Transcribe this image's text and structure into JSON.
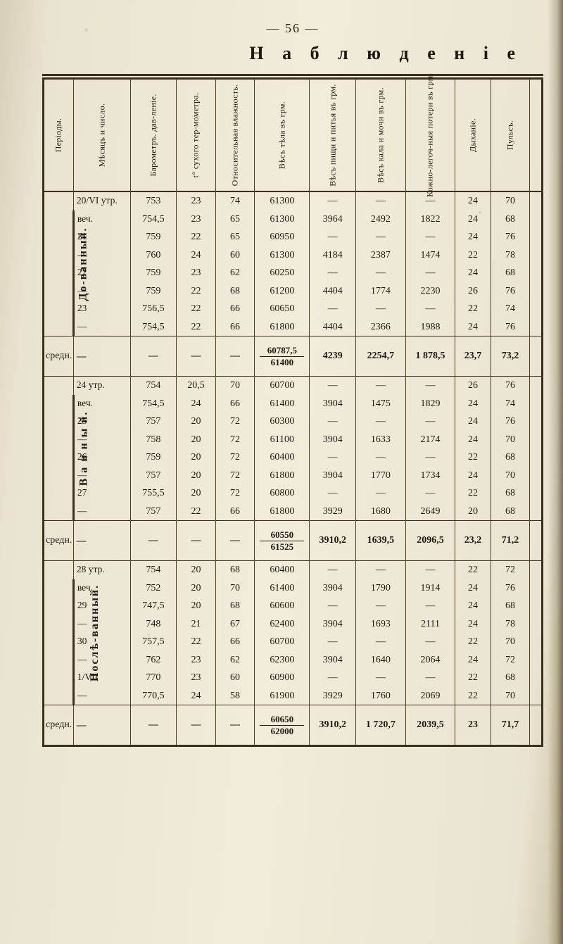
{
  "page_number": "— 56 —",
  "title": "Н а б л ю д е н і е",
  "columns": [
    {
      "key": "period",
      "label": "Періоды."
    },
    {
      "key": "date",
      "label": "Мѣсяцъ и число."
    },
    {
      "key": "baro",
      "label": "Барометръ. дав-леніе."
    },
    {
      "key": "temp",
      "label": "t° сухого тер-мометра."
    },
    {
      "key": "humid",
      "label": "Относительная влажность."
    },
    {
      "key": "bodywt",
      "label": "Вѣсъ тѣла въ грм."
    },
    {
      "key": "foodwt",
      "label": "Вѣсъ пищи и питья въ грм."
    },
    {
      "key": "fecwt",
      "label": "Вѣсъ кала и мочи въ грм."
    },
    {
      "key": "urinewt",
      "label": "Кожно-легоч-ныя потери въ грм."
    },
    {
      "key": "breath",
      "label": "Дыханіе."
    },
    {
      "key": "pulse",
      "label": "Пульсъ."
    },
    {
      "key": "edge",
      "label": ""
    }
  ],
  "blocks": [
    {
      "period_label": "До-ванный.",
      "rows": [
        {
          "date": "20/VI утр.",
          "baro": "753",
          "temp": "23",
          "humid": "74",
          "bodywt": "61300",
          "foodwt": "—",
          "fecwt": "—",
          "urinewt": "—",
          "breath": "24",
          "pulse": "70",
          "edge": ""
        },
        {
          "date": "        веч.",
          "baro": "754,5",
          "temp": "23",
          "humid": "65",
          "bodywt": "61300",
          "foodwt": "3964",
          "fecwt": "2492",
          "urinewt": "1822",
          "breath": "24",
          "pulse": "68",
          "edge": ""
        },
        {
          "date": "21",
          "baro": "759",
          "temp": "22",
          "humid": "65",
          "bodywt": "60950",
          "foodwt": "—",
          "fecwt": "—",
          "urinewt": "—",
          "breath": "24",
          "pulse": "76",
          "edge": ""
        },
        {
          "date": "   —",
          "baro": "760",
          "temp": "24",
          "humid": "60",
          "bodywt": "61300",
          "foodwt": "4184",
          "fecwt": "2387",
          "urinewt": "1474",
          "breath": "22",
          "pulse": "78",
          "edge": ""
        },
        {
          "date": "22",
          "baro": "759",
          "temp": "23",
          "humid": "62",
          "bodywt": "60250",
          "foodwt": "—",
          "fecwt": "—",
          "urinewt": "—",
          "breath": "24",
          "pulse": "68",
          "edge": ""
        },
        {
          "date": "   —",
          "baro": "759",
          "temp": "22",
          "humid": "68",
          "bodywt": "61200",
          "foodwt": "4404",
          "fecwt": "1774",
          "urinewt": "2230",
          "breath": "26",
          "pulse": "76",
          "edge": ""
        },
        {
          "date": "23",
          "baro": "756,5",
          "temp": "22",
          "humid": "66",
          "bodywt": "60650",
          "foodwt": "—",
          "fecwt": "—",
          "urinewt": "—",
          "breath": "22",
          "pulse": "74",
          "edge": ""
        },
        {
          "date": "   —",
          "baro": "754,5",
          "temp": "22",
          "humid": "66",
          "bodywt": "61800",
          "foodwt": "4404",
          "fecwt": "2366",
          "urinewt": "1988",
          "breath": "24",
          "pulse": "76",
          "edge": ""
        }
      ],
      "summary": {
        "label": "средн.",
        "date": "—",
        "baro": "—",
        "temp": "—",
        "humid": "—",
        "bodywt_num": "60787,5",
        "bodywt_den": "61400",
        "foodwt": "4239",
        "fecwt": "2254,7",
        "urinewt": "1 878,5",
        "breath": "23,7",
        "pulse": "73,2",
        "edge": ""
      }
    },
    {
      "period_label": "В а н н ы й.",
      "rows": [
        {
          "date": "24 утр.",
          "baro": "754",
          "temp": "20,5",
          "humid": "70",
          "bodywt": "60700",
          "foodwt": "—",
          "fecwt": "—",
          "urinewt": "—",
          "breath": "26",
          "pulse": "76",
          "edge": ""
        },
        {
          "date": "    веч.",
          "baro": "754,5",
          "temp": "24",
          "humid": "66",
          "bodywt": "61400",
          "foodwt": "3904",
          "fecwt": "1475",
          "urinewt": "1829",
          "breath": "24",
          "pulse": "74",
          "edge": ""
        },
        {
          "date": "25",
          "baro": "757",
          "temp": "20",
          "humid": "72",
          "bodywt": "60300",
          "foodwt": "—",
          "fecwt": "—",
          "urinewt": "—",
          "breath": "24",
          "pulse": "76",
          "edge": ""
        },
        {
          "date": "   —",
          "baro": "758",
          "temp": "20",
          "humid": "72",
          "bodywt": "61100",
          "foodwt": "3904",
          "fecwt": "1633",
          "urinewt": "2174",
          "breath": "24",
          "pulse": "70",
          "edge": ""
        },
        {
          "date": "26",
          "baro": "759",
          "temp": "20",
          "humid": "72",
          "bodywt": "60400",
          "foodwt": "—",
          "fecwt": "—",
          "urinewt": "—",
          "breath": "22",
          "pulse": "68",
          "edge": ""
        },
        {
          "date": "   —",
          "baro": "757",
          "temp": "20",
          "humid": "72",
          "bodywt": "61800",
          "foodwt": "3904",
          "fecwt": "1770",
          "urinewt": "1734",
          "breath": "24",
          "pulse": "70",
          "edge": ""
        },
        {
          "date": "27",
          "baro": "755,5",
          "temp": "20",
          "humid": "72",
          "bodywt": "60800",
          "foodwt": "—",
          "fecwt": "—",
          "urinewt": "—",
          "breath": "22",
          "pulse": "68",
          "edge": ""
        },
        {
          "date": "   —",
          "baro": "757",
          "temp": "22",
          "humid": "66",
          "bodywt": "61800",
          "foodwt": "3929",
          "fecwt": "1680",
          "urinewt": "2649",
          "breath": "20",
          "pulse": "68",
          "edge": ""
        }
      ],
      "summary": {
        "label": "средн.",
        "date": "—",
        "baro": "—",
        "temp": "—",
        "humid": "—",
        "bodywt_num": "60550",
        "bodywt_den": "61525",
        "foodwt": "3910,2",
        "fecwt": "1639,5",
        "urinewt": "2096,5",
        "breath": "23,2",
        "pulse": "71,2",
        "edge": ""
      }
    },
    {
      "period_label": "Послѣ-ванный.",
      "rows": [
        {
          "date": "28 утр.",
          "baro": "754",
          "temp": "20",
          "humid": "68",
          "bodywt": "60400",
          "foodwt": "—",
          "fecwt": "—",
          "urinewt": "—",
          "breath": "22",
          "pulse": "72",
          "edge": ""
        },
        {
          "date": "      веч.",
          "baro": "752",
          "temp": "20",
          "humid": "70",
          "bodywt": "61400",
          "foodwt": "3904",
          "fecwt": "1790",
          "urinewt": "1914",
          "breath": "24",
          "pulse": "76",
          "edge": ""
        },
        {
          "date": "29",
          "baro": "747,5",
          "temp": "20",
          "humid": "68",
          "bodywt": "60600",
          "foodwt": "—",
          "fecwt": "—",
          "urinewt": "—",
          "breath": "24",
          "pulse": "68",
          "edge": ""
        },
        {
          "date": "   —",
          "baro": "748",
          "temp": "21",
          "humid": "67",
          "bodywt": "62400",
          "foodwt": "3904",
          "fecwt": "1693",
          "urinewt": "2111",
          "breath": "24",
          "pulse": "78",
          "edge": ""
        },
        {
          "date": "30",
          "baro": "757,5",
          "temp": "22",
          "humid": "66",
          "bodywt": "60700",
          "foodwt": "—",
          "fecwt": "—",
          "urinewt": "—",
          "breath": "22",
          "pulse": "70",
          "edge": ""
        },
        {
          "date": "   —",
          "baro": "762",
          "temp": "23",
          "humid": "62",
          "bodywt": "62300",
          "foodwt": "3904",
          "fecwt": "1640",
          "urinewt": "2064",
          "breath": "24",
          "pulse": "72",
          "edge": ""
        },
        {
          "date": "1/VII",
          "baro": "770",
          "temp": "23",
          "humid": "60",
          "bodywt": "60900",
          "foodwt": "—",
          "fecwt": "—",
          "urinewt": "—",
          "breath": "22",
          "pulse": "68",
          "edge": ""
        },
        {
          "date": "   —",
          "baro": "770,5",
          "temp": "24",
          "humid": "58",
          "bodywt": "61900",
          "foodwt": "3929",
          "fecwt": "1760",
          "urinewt": "2069",
          "breath": "22",
          "pulse": "70",
          "edge": ""
        }
      ],
      "summary": {
        "label": "средн.",
        "date": "—",
        "baro": "—",
        "temp": "—",
        "humid": "—",
        "bodywt_num": "60650",
        "bodywt_den": "62000",
        "foodwt": "3910,2",
        "fecwt": "1 720,7",
        "urinewt": "2039,5",
        "breath": "23",
        "pulse": "71,7",
        "edge": ""
      }
    }
  ],
  "styling": {
    "page_bg": "#e9e4d1",
    "ink": "#1f1a10",
    "rule": "#3a311d",
    "font": "Georgia, Times New Roman, serif",
    "title_fontsize": 26,
    "body_fontsize": 14,
    "header_fontsize": 12
  }
}
